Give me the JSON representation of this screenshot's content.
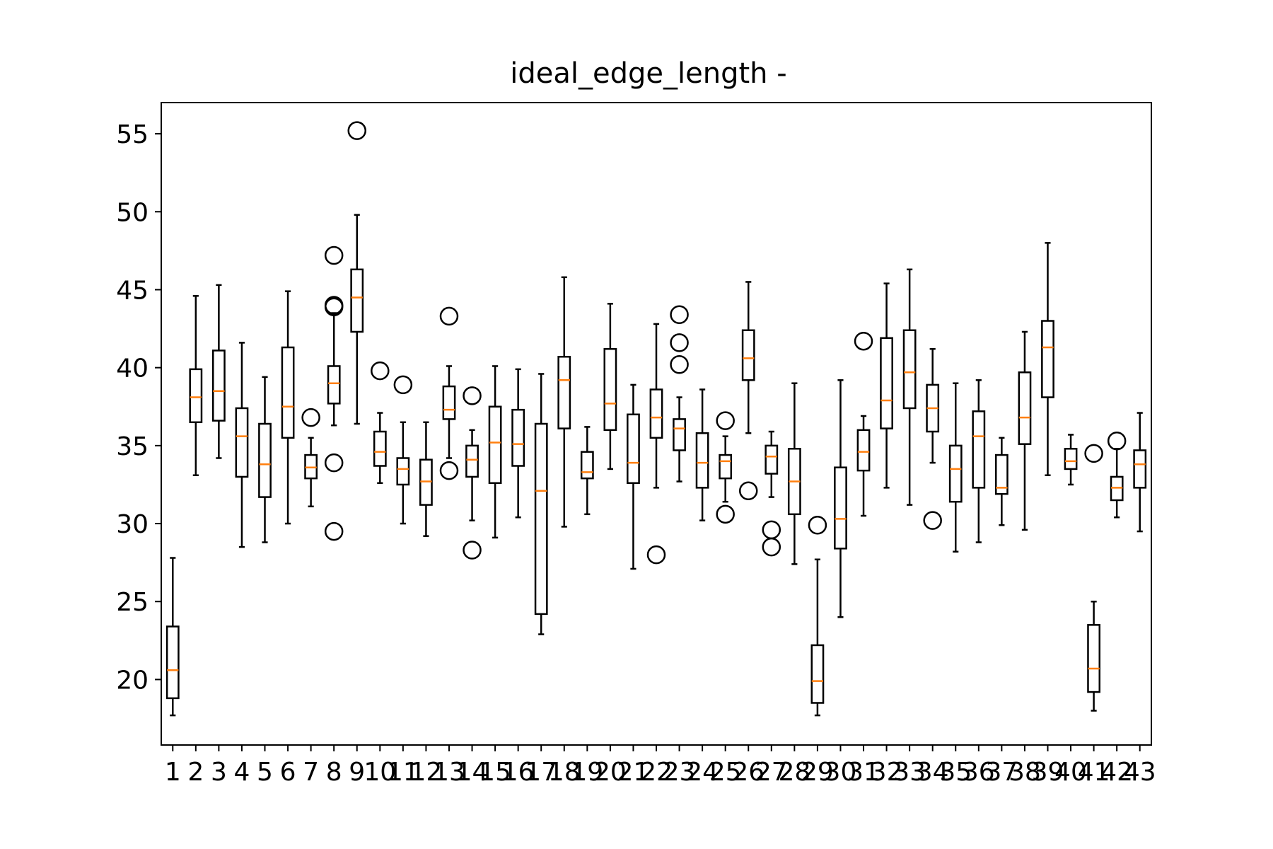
{
  "chart_data": {
    "type": "box",
    "title": "ideal_edge_length -",
    "xlabel": "",
    "ylabel": "",
    "categories": [
      "1",
      "2",
      "3",
      "4",
      "5",
      "6",
      "7",
      "8",
      "9",
      "10",
      "11",
      "12",
      "13",
      "14",
      "15",
      "16",
      "17",
      "18",
      "19",
      "20",
      "21",
      "22",
      "23",
      "24",
      "25",
      "26",
      "27",
      "28",
      "29",
      "30",
      "31",
      "32",
      "33",
      "34",
      "35",
      "36",
      "37",
      "38",
      "39",
      "40",
      "41",
      "42",
      "43"
    ],
    "yticks": [
      20,
      25,
      30,
      35,
      40,
      45,
      50,
      55
    ],
    "ylim": [
      15.8,
      57.0
    ],
    "grid": false,
    "median_color": "#ff7f0e",
    "box_color": "#000000",
    "boxes": [
      {
        "whislo": 17.7,
        "q1": 18.8,
        "med": 20.6,
        "q3": 23.4,
        "whishi": 27.8,
        "fliers": []
      },
      {
        "whislo": 33.1,
        "q1": 36.5,
        "med": 38.1,
        "q3": 39.9,
        "whishi": 44.6,
        "fliers": []
      },
      {
        "whislo": 34.2,
        "q1": 36.6,
        "med": 38.5,
        "q3": 41.1,
        "whishi": 45.3,
        "fliers": []
      },
      {
        "whislo": 28.5,
        "q1": 33.0,
        "med": 35.6,
        "q3": 37.4,
        "whishi": 41.6,
        "fliers": []
      },
      {
        "whislo": 28.8,
        "q1": 31.7,
        "med": 33.8,
        "q3": 36.4,
        "whishi": 39.4,
        "fliers": []
      },
      {
        "whislo": 30.0,
        "q1": 35.5,
        "med": 37.5,
        "q3": 41.3,
        "whishi": 44.9,
        "fliers": []
      },
      {
        "whislo": 31.1,
        "q1": 32.9,
        "med": 33.6,
        "q3": 34.4,
        "whishi": 35.5,
        "fliers": [
          36.8
        ]
      },
      {
        "whislo": 36.3,
        "q1": 37.7,
        "med": 39.0,
        "q3": 40.1,
        "whishi": 43.5,
        "fliers": [
          47.2,
          44.0,
          43.9,
          33.9,
          29.5
        ]
      },
      {
        "whislo": 36.4,
        "q1": 42.3,
        "med": 44.5,
        "q3": 46.3,
        "whishi": 49.8,
        "fliers": [
          55.2
        ]
      },
      {
        "whislo": 32.6,
        "q1": 33.7,
        "med": 34.6,
        "q3": 35.9,
        "whishi": 37.1,
        "fliers": [
          39.8
        ]
      },
      {
        "whislo": 30.0,
        "q1": 32.5,
        "med": 33.5,
        "q3": 34.2,
        "whishi": 36.5,
        "fliers": [
          38.9
        ]
      },
      {
        "whislo": 29.2,
        "q1": 31.2,
        "med": 32.7,
        "q3": 34.1,
        "whishi": 36.5,
        "fliers": []
      },
      {
        "whislo": 34.2,
        "q1": 36.7,
        "med": 37.3,
        "q3": 38.8,
        "whishi": 40.1,
        "fliers": [
          43.3,
          33.4
        ]
      },
      {
        "whislo": 30.2,
        "q1": 33.0,
        "med": 34.1,
        "q3": 35.0,
        "whishi": 36.0,
        "fliers": [
          38.2,
          28.3
        ]
      },
      {
        "whislo": 29.1,
        "q1": 32.6,
        "med": 35.2,
        "q3": 37.5,
        "whishi": 40.1,
        "fliers": []
      },
      {
        "whislo": 30.4,
        "q1": 33.7,
        "med": 35.1,
        "q3": 37.3,
        "whishi": 39.9,
        "fliers": []
      },
      {
        "whislo": 22.9,
        "q1": 24.2,
        "med": 32.1,
        "q3": 36.4,
        "whishi": 39.6,
        "fliers": []
      },
      {
        "whislo": 29.8,
        "q1": 36.1,
        "med": 39.2,
        "q3": 40.7,
        "whishi": 45.8,
        "fliers": []
      },
      {
        "whislo": 30.6,
        "q1": 32.9,
        "med": 33.3,
        "q3": 34.6,
        "whishi": 36.2,
        "fliers": []
      },
      {
        "whislo": 33.5,
        "q1": 36.0,
        "med": 37.7,
        "q3": 41.2,
        "whishi": 44.1,
        "fliers": []
      },
      {
        "whislo": 27.1,
        "q1": 32.6,
        "med": 33.9,
        "q3": 37.0,
        "whishi": 38.9,
        "fliers": []
      },
      {
        "whislo": 32.3,
        "q1": 35.5,
        "med": 36.8,
        "q3": 38.6,
        "whishi": 42.8,
        "fliers": [
          28.0
        ]
      },
      {
        "whislo": 32.7,
        "q1": 34.7,
        "med": 36.1,
        "q3": 36.7,
        "whishi": 38.1,
        "fliers": [
          43.4,
          41.6,
          40.2
        ]
      },
      {
        "whislo": 30.2,
        "q1": 32.3,
        "med": 33.9,
        "q3": 35.8,
        "whishi": 38.6,
        "fliers": []
      },
      {
        "whislo": 31.4,
        "q1": 32.9,
        "med": 34.0,
        "q3": 34.4,
        "whishi": 35.6,
        "fliers": [
          36.6,
          30.6
        ]
      },
      {
        "whislo": 35.8,
        "q1": 39.2,
        "med": 40.6,
        "q3": 42.4,
        "whishi": 45.5,
        "fliers": [
          32.1
        ]
      },
      {
        "whislo": 31.7,
        "q1": 33.2,
        "med": 34.3,
        "q3": 35.0,
        "whishi": 35.9,
        "fliers": [
          29.6,
          28.5
        ]
      },
      {
        "whislo": 27.4,
        "q1": 30.6,
        "med": 32.7,
        "q3": 34.8,
        "whishi": 39.0,
        "fliers": []
      },
      {
        "whislo": 17.7,
        "q1": 18.5,
        "med": 19.9,
        "q3": 22.2,
        "whishi": 27.7,
        "fliers": [
          29.9
        ]
      },
      {
        "whislo": 24.0,
        "q1": 28.4,
        "med": 30.3,
        "q3": 33.6,
        "whishi": 39.2,
        "fliers": []
      },
      {
        "whislo": 30.5,
        "q1": 33.4,
        "med": 34.6,
        "q3": 36.0,
        "whishi": 36.9,
        "fliers": [
          41.7
        ]
      },
      {
        "whislo": 32.3,
        "q1": 36.1,
        "med": 37.9,
        "q3": 41.9,
        "whishi": 45.4,
        "fliers": []
      },
      {
        "whislo": 31.2,
        "q1": 37.4,
        "med": 39.7,
        "q3": 42.4,
        "whishi": 46.3,
        "fliers": []
      },
      {
        "whislo": 33.9,
        "q1": 35.9,
        "med": 37.4,
        "q3": 38.9,
        "whishi": 41.2,
        "fliers": [
          30.2
        ]
      },
      {
        "whislo": 28.2,
        "q1": 31.4,
        "med": 33.5,
        "q3": 35.0,
        "whishi": 39.0,
        "fliers": []
      },
      {
        "whislo": 28.8,
        "q1": 32.3,
        "med": 35.6,
        "q3": 37.2,
        "whishi": 39.2,
        "fliers": []
      },
      {
        "whislo": 29.9,
        "q1": 31.9,
        "med": 32.3,
        "q3": 34.4,
        "whishi": 35.5,
        "fliers": []
      },
      {
        "whislo": 29.6,
        "q1": 35.1,
        "med": 36.8,
        "q3": 39.7,
        "whishi": 42.3,
        "fliers": []
      },
      {
        "whislo": 33.1,
        "q1": 38.1,
        "med": 41.3,
        "q3": 43.0,
        "whishi": 48.0,
        "fliers": []
      },
      {
        "whislo": 32.5,
        "q1": 33.5,
        "med": 34.0,
        "q3": 34.8,
        "whishi": 35.7,
        "fliers": []
      },
      {
        "whislo": 18.0,
        "q1": 19.2,
        "med": 20.7,
        "q3": 23.5,
        "whishi": 25.0,
        "fliers": [
          34.5
        ]
      },
      {
        "whislo": 30.4,
        "q1": 31.5,
        "med": 32.3,
        "q3": 33.0,
        "whishi": 34.8,
        "fliers": [
          35.3
        ]
      },
      {
        "whislo": 29.5,
        "q1": 32.3,
        "med": 33.8,
        "q3": 34.7,
        "whishi": 37.1,
        "fliers": []
      }
    ]
  }
}
